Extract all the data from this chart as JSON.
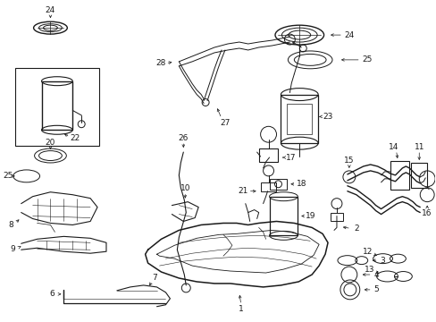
{
  "bg": "#ffffff",
  "lc": "#1a1a1a",
  "fw": 4.89,
  "fh": 3.6,
  "dpi": 100
}
